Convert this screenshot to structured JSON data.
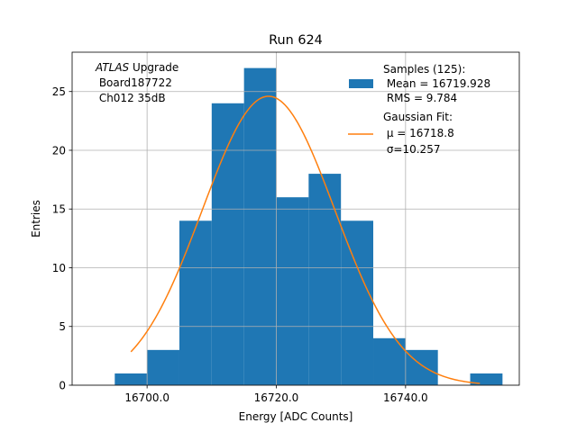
{
  "chart_data": {
    "type": "bar",
    "title": "Run 624",
    "xlabel": "Energy [ADC Counts]",
    "ylabel": "Entries",
    "xlim": [
      16688.4,
      16757.6
    ],
    "ylim": [
      0,
      28.35
    ],
    "xticks": [
      16700.0,
      16720.0,
      16740.0
    ],
    "xtick_labels": [
      "16700.0",
      "16720.0",
      "16740.0"
    ],
    "yticks": [
      0,
      5,
      10,
      15,
      20,
      25
    ],
    "ytick_labels": [
      "0",
      "5",
      "10",
      "15",
      "20",
      "25"
    ],
    "grid": true,
    "bin_edges": [
      16695,
      16700,
      16705,
      16710,
      16715,
      16720,
      16725,
      16730,
      16735,
      16740,
      16745,
      16750,
      16755
    ],
    "counts": [
      1,
      3,
      14,
      24,
      27,
      16,
      18,
      14,
      4,
      3,
      0,
      1
    ],
    "series": [
      {
        "type": "histogram",
        "color": "#1f77b4",
        "legend": [
          "Samples (125):",
          " Mean = 16719.928",
          " RMS = 9.784"
        ]
      },
      {
        "type": "gaussian_fit",
        "color": "#ff7f0e",
        "mu": 16718.8,
        "sigma": 10.257,
        "amplitude": 24.6,
        "x_range": [
          16697.5,
          16751.5
        ],
        "legend": [
          "Gaussian Fit:",
          " μ = 16718.8",
          " σ=10.257"
        ]
      }
    ],
    "legend_position": "upper right",
    "annotation": {
      "line1_italic": "ATLAS",
      "line1_rest": " Upgrade",
      "line2": " Board187722",
      "line3": " Ch012 35dB"
    }
  }
}
